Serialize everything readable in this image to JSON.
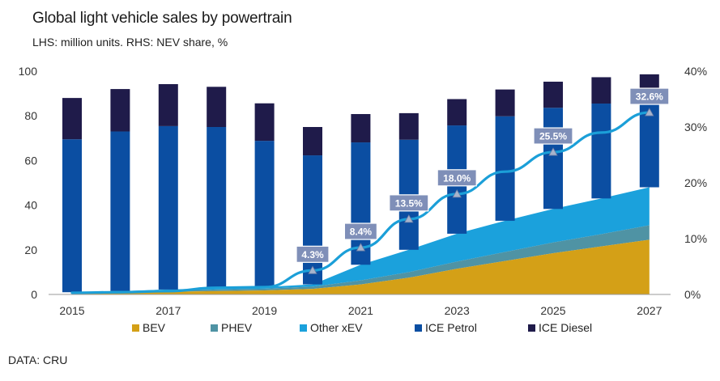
{
  "header": {
    "title": "Global light vehicle sales by powertrain",
    "subtitle": "LHS: million units. RHS: NEV share, %"
  },
  "footer": {
    "source": "DATA: CRU"
  },
  "colors": {
    "bev": "#d4a017",
    "phev": "#4f93a4",
    "other_xev": "#1ba1dc",
    "ice_petrol": "#0b4ea2",
    "ice_diesel": "#1f1b4a",
    "nev_share_line": "#1b9fd8",
    "callout_fill": "#7f8fb8",
    "callout_border": "#ffffff"
  },
  "chart_data": {
    "type": "bar",
    "title": "Global light vehicle sales by powertrain",
    "subtitle": "LHS: million units. RHS: NEV share, %",
    "x": [
      2015,
      2016,
      2017,
      2018,
      2019,
      2020,
      2021,
      2022,
      2023,
      2024,
      2025,
      2026,
      2027
    ],
    "x_tick_labels": [
      "2015",
      "2017",
      "2019",
      "2021",
      "2023",
      "2025",
      "2027"
    ],
    "ylim_left": [
      0,
      100
    ],
    "y_left_ticks": [
      "0",
      "20",
      "40",
      "60",
      "80",
      "100"
    ],
    "ylim_right": [
      0,
      40
    ],
    "y_right_ticks": [
      "0%",
      "10%",
      "20%",
      "30%",
      "40%"
    ],
    "grid": false,
    "legend_position": "bottom",
    "series": [
      {
        "name": "BEV",
        "kind": "area",
        "values": [
          0.5,
          0.8,
          1.2,
          1.5,
          1.8,
          2.5,
          4.5,
          7.5,
          11.5,
          15,
          18.5,
          21.5,
          24.5
        ]
      },
      {
        "name": "PHEV",
        "kind": "area",
        "values": [
          0.2,
          0.3,
          0.5,
          0.7,
          0.8,
          1.0,
          1.8,
          2.5,
          3.2,
          4.0,
          4.8,
          5.5,
          6.5
        ]
      },
      {
        "name": "Other xEV",
        "kind": "area",
        "values": [
          0.3,
          0.4,
          0.5,
          0.6,
          0.7,
          1.0,
          7.0,
          10.0,
          12.5,
          14.0,
          15.0,
          16.0,
          17.0
        ]
      },
      {
        "name": "ICE Petrol",
        "kind": "bar",
        "values": [
          68.5,
          71.5,
          73.2,
          72.2,
          65.5,
          57.8,
          54.8,
          49.3,
          48.5,
          46.8,
          45.3,
          42.5,
          39.8
        ]
      },
      {
        "name": "ICE Diesel",
        "kind": "bar",
        "values": [
          18.5,
          19.0,
          18.8,
          18.0,
          16.8,
          12.7,
          12.7,
          11.9,
          11.8,
          12.0,
          11.7,
          11.8,
          10.8
        ]
      },
      {
        "name": "NEV share",
        "kind": "line",
        "axis": "right",
        "values": [
          0.3,
          0.4,
          0.6,
          1.2,
          1.3,
          4.3,
          8.4,
          13.5,
          18.0,
          22.0,
          25.5,
          29.0,
          32.6
        ]
      }
    ],
    "callouts": [
      {
        "x": 2020,
        "value": 4.3,
        "label": "4.3%"
      },
      {
        "x": 2021,
        "value": 8.4,
        "label": "8.4%"
      },
      {
        "x": 2022,
        "value": 13.5,
        "label": "13.5%"
      },
      {
        "x": 2023,
        "value": 18.0,
        "label": "18.0%"
      },
      {
        "x": 2025,
        "value": 25.5,
        "label": "25.5%"
      },
      {
        "x": 2027,
        "value": 32.6,
        "label": "32.6%"
      }
    ],
    "legend": [
      "BEV",
      "PHEV",
      "Other xEV",
      "ICE Petrol",
      "ICE Diesel"
    ]
  }
}
